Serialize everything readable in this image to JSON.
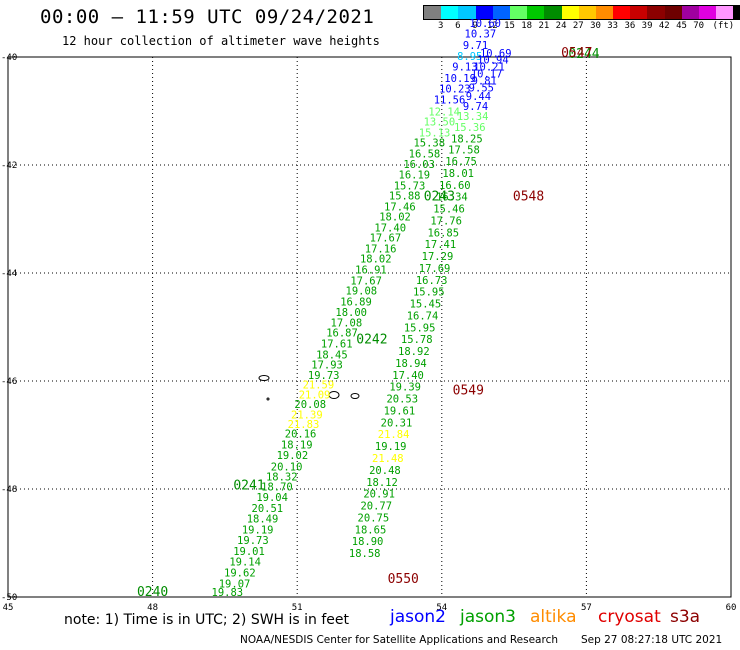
{
  "header": {
    "title": "00:00 – 11:59 UTC 09/24/2021",
    "subtitle": "12 hour collection of altimeter wave heights"
  },
  "colorbar": {
    "unit": "(ft)",
    "colors": [
      "#808080",
      "#00ffff",
      "#00c8ff",
      "#0000ff",
      "#0064ff",
      "#64ff64",
      "#00c800",
      "#008c00",
      "#ffff00",
      "#ffc800",
      "#ff8c00",
      "#ff0000",
      "#c80000",
      "#8c0000",
      "#6e0000",
      "#a000a0",
      "#e000e0",
      "#ff96ff",
      "#000000"
    ],
    "labels": [
      "3",
      "6",
      "9",
      "12",
      "15",
      "18",
      "21",
      "24",
      "27",
      "30",
      "33",
      "36",
      "39",
      "42",
      "45",
      "70"
    ]
  },
  "map": {
    "lon_ticks": [
      "45",
      "48",
      "51",
      "54",
      "57",
      "60"
    ],
    "lat_ticks": [
      "-40",
      "-42",
      "-44",
      "-46",
      "-48",
      "-50"
    ],
    "tracks": [
      {
        "name": "pass-0240-0241-0242-0243",
        "points": [
          {
            "lon": 49.55,
            "lat": -49.98,
            "v": "19.83",
            "c": "#00a000"
          },
          {
            "lon": 49.7,
            "lat": -49.82,
            "v": "19.07",
            "c": "#00a000"
          },
          {
            "lon": 49.81,
            "lat": -49.62,
            "v": "19.62",
            "c": "#00a000"
          },
          {
            "lon": 49.92,
            "lat": -49.42,
            "v": "19.14",
            "c": "#00a000"
          },
          {
            "lon": 50.0,
            "lat": -49.22,
            "v": "19.01",
            "c": "#00a000"
          },
          {
            "lon": 50.08,
            "lat": -49.02,
            "v": "19.73",
            "c": "#00a000"
          },
          {
            "lon": 50.18,
            "lat": -48.82,
            "v": "19.19",
            "c": "#00a000"
          },
          {
            "lon": 50.28,
            "lat": -48.62,
            "v": "18.49",
            "c": "#00a000"
          },
          {
            "lon": 50.38,
            "lat": -48.43,
            "v": "20.51",
            "c": "#00a000"
          },
          {
            "lon": 50.48,
            "lat": -48.22,
            "v": "19.04",
            "c": "#00a000"
          },
          {
            "lon": 50.58,
            "lat": -48.03,
            "v": "18.70",
            "c": "#00a000"
          },
          {
            "lon": 50.68,
            "lat": -47.84,
            "v": "18.32",
            "c": "#00a000"
          },
          {
            "lon": 50.78,
            "lat": -47.66,
            "v": "20.10",
            "c": "#00a000"
          },
          {
            "lon": 50.9,
            "lat": -47.44,
            "v": "19.02",
            "c": "#00a000"
          },
          {
            "lon": 50.99,
            "lat": -47.25,
            "v": "18.19",
            "c": "#00a000"
          },
          {
            "lon": 51.07,
            "lat": -47.05,
            "v": "20.16",
            "c": "#00a000"
          },
          {
            "lon": 51.13,
            "lat": -46.87,
            "v": "21.83",
            "c": "#ffff00"
          },
          {
            "lon": 51.2,
            "lat": -46.69,
            "v": "21.39",
            "c": "#ffff00"
          },
          {
            "lon": 51.27,
            "lat": -46.5,
            "v": "20.08",
            "c": "#00a000"
          },
          {
            "lon": 51.36,
            "lat": -46.32,
            "v": "21.09",
            "c": "#ffff00"
          },
          {
            "lon": 51.44,
            "lat": -46.14,
            "v": "21.59",
            "c": "#ffff00"
          },
          {
            "lon": 51.55,
            "lat": -45.96,
            "v": "19.73",
            "c": "#00a000"
          },
          {
            "lon": 51.62,
            "lat": -45.77,
            "v": "17.93",
            "c": "#00a000"
          },
          {
            "lon": 51.72,
            "lat": -45.58,
            "v": "18.45",
            "c": "#00a000"
          },
          {
            "lon": 51.82,
            "lat": -45.38,
            "v": "17.61",
            "c": "#00a000"
          },
          {
            "lon": 51.93,
            "lat": -45.18,
            "v": "16.87",
            "c": "#00a000"
          },
          {
            "lon": 52.02,
            "lat": -44.99,
            "v": "17.08",
            "c": "#00a000"
          },
          {
            "lon": 52.12,
            "lat": -44.8,
            "v": "18.00",
            "c": "#00a000"
          },
          {
            "lon": 52.22,
            "lat": -44.6,
            "v": "16.89",
            "c": "#00a000"
          },
          {
            "lon": 52.33,
            "lat": -44.4,
            "v": "19.08",
            "c": "#00a000"
          },
          {
            "lon": 52.43,
            "lat": -44.21,
            "v": "17.67",
            "c": "#00a000"
          },
          {
            "lon": 52.53,
            "lat": -44.01,
            "v": "16.91",
            "c": "#00a000"
          },
          {
            "lon": 52.63,
            "lat": -43.81,
            "v": "18.02",
            "c": "#00a000"
          },
          {
            "lon": 52.73,
            "lat": -43.62,
            "v": "17.16",
            "c": "#00a000"
          },
          {
            "lon": 52.83,
            "lat": -43.42,
            "v": "17.67",
            "c": "#00a000"
          },
          {
            "lon": 52.93,
            "lat": -43.23,
            "v": "17.40",
            "c": "#00a000"
          },
          {
            "lon": 53.03,
            "lat": -43.03,
            "v": "18.02",
            "c": "#00a000"
          },
          {
            "lon": 53.13,
            "lat": -42.84,
            "v": "17.46",
            "c": "#00a000"
          },
          {
            "lon": 53.23,
            "lat": -42.64,
            "v": "15.88",
            "c": "#00a000"
          },
          {
            "lon": 53.33,
            "lat": -42.45,
            "v": "15.73",
            "c": "#00a000"
          },
          {
            "lon": 53.43,
            "lat": -42.25,
            "v": "16.19",
            "c": "#00a000"
          },
          {
            "lon": 53.53,
            "lat": -42.06,
            "v": "16.03",
            "c": "#00a000"
          },
          {
            "lon": 53.64,
            "lat": -41.86,
            "v": "16.58",
            "c": "#00a000"
          },
          {
            "lon": 53.74,
            "lat": -41.66,
            "v": "15.38",
            "c": "#00a000"
          },
          {
            "lon": 53.85,
            "lat": -41.47,
            "v": "15.13",
            "c": "#64ff64"
          },
          {
            "lon": 53.95,
            "lat": -41.27,
            "v": "13.50",
            "c": "#64ff64"
          },
          {
            "lon": 54.05,
            "lat": -41.08,
            "v": "12.14",
            "c": "#64ff64"
          },
          {
            "lon": 54.16,
            "lat": -40.86,
            "v": "11.56",
            "c": "#0000ff"
          },
          {
            "lon": 54.27,
            "lat": -40.66,
            "v": "10.23",
            "c": "#0000ff"
          },
          {
            "lon": 54.38,
            "lat": -40.46,
            "v": "10.19",
            "c": "#0000ff"
          },
          {
            "lon": 54.48,
            "lat": -40.25,
            "v": "9.13",
            "c": "#0000ff"
          },
          {
            "lon": 54.58,
            "lat": -40.06,
            "v": "8.95",
            "c": "#00c8ff"
          },
          {
            "lon": 54.7,
            "lat": -39.85,
            "v": "9.71",
            "c": "#0000ff"
          },
          {
            "lon": 54.8,
            "lat": -39.64,
            "v": "10.37",
            "c": "#0000ff"
          },
          {
            "lon": 54.9,
            "lat": -39.44,
            "v": "10.60",
            "c": "#0000ff"
          }
        ]
      },
      {
        "name": "pass-0548-0549-0550",
        "points": [
          {
            "lon": 55.12,
            "lat": -40.0,
            "v": "10.69",
            "c": "#0000ff"
          },
          {
            "lon": 55.06,
            "lat": -40.12,
            "v": "10.94",
            "c": "#0000ff"
          },
          {
            "lon": 54.98,
            "lat": -40.25,
            "v": "10.21",
            "c": "#0000ff"
          },
          {
            "lon": 54.93,
            "lat": -40.38,
            "v": "10.17",
            "c": "#0000ff"
          },
          {
            "lon": 54.88,
            "lat": -40.51,
            "v": "9.81",
            "c": "#0000ff"
          },
          {
            "lon": 54.82,
            "lat": -40.64,
            "v": "9.55",
            "c": "#0000ff"
          },
          {
            "lon": 54.76,
            "lat": -40.8,
            "v": "9.44",
            "c": "#0000ff"
          },
          {
            "lon": 54.7,
            "lat": -40.98,
            "v": "9.74",
            "c": "#0000ff"
          },
          {
            "lon": 54.64,
            "lat": -41.17,
            "v": "13.34",
            "c": "#64ff64"
          },
          {
            "lon": 54.58,
            "lat": -41.37,
            "v": "15.36",
            "c": "#64ff64"
          },
          {
            "lon": 54.52,
            "lat": -41.58,
            "v": "18.25",
            "c": "#00a000"
          },
          {
            "lon": 54.46,
            "lat": -41.79,
            "v": "17.58",
            "c": "#00a000"
          },
          {
            "lon": 54.4,
            "lat": -42.0,
            "v": "16.75",
            "c": "#00a000"
          },
          {
            "lon": 54.34,
            "lat": -42.22,
            "v": "18.01",
            "c": "#00a000"
          },
          {
            "lon": 54.27,
            "lat": -42.44,
            "v": "16.60",
            "c": "#00a000"
          },
          {
            "lon": 54.21,
            "lat": -42.66,
            "v": "16.34",
            "c": "#00a000"
          },
          {
            "lon": 54.15,
            "lat": -42.88,
            "v": "15.46",
            "c": "#00a000"
          },
          {
            "lon": 54.09,
            "lat": -43.1,
            "v": "17.76",
            "c": "#00a000"
          },
          {
            "lon": 54.03,
            "lat": -43.32,
            "v": "16.85",
            "c": "#00a000"
          },
          {
            "lon": 53.97,
            "lat": -43.54,
            "v": "17.41",
            "c": "#00a000"
          },
          {
            "lon": 53.91,
            "lat": -43.76,
            "v": "17.29",
            "c": "#00a000"
          },
          {
            "lon": 53.85,
            "lat": -43.98,
            "v": "17.69",
            "c": "#00a000"
          },
          {
            "lon": 53.79,
            "lat": -44.2,
            "v": "16.73",
            "c": "#00a000"
          },
          {
            "lon": 53.73,
            "lat": -44.42,
            "v": "15.95",
            "c": "#00a000"
          },
          {
            "lon": 53.66,
            "lat": -44.64,
            "v": "15.45",
            "c": "#00a000"
          },
          {
            "lon": 53.6,
            "lat": -44.86,
            "v": "16.74",
            "c": "#00a000"
          },
          {
            "lon": 53.54,
            "lat": -45.08,
            "v": "15.95",
            "c": "#00a000"
          },
          {
            "lon": 53.48,
            "lat": -45.3,
            "v": "15.78",
            "c": "#00a000"
          },
          {
            "lon": 53.42,
            "lat": -45.52,
            "v": "18.92",
            "c": "#00a000"
          },
          {
            "lon": 53.36,
            "lat": -45.74,
            "v": "18.94",
            "c": "#00a000"
          },
          {
            "lon": 53.3,
            "lat": -45.96,
            "v": "17.40",
            "c": "#00a000"
          },
          {
            "lon": 53.24,
            "lat": -46.18,
            "v": "19.39",
            "c": "#00a000"
          },
          {
            "lon": 53.18,
            "lat": -46.4,
            "v": "20.53",
            "c": "#00a000"
          },
          {
            "lon": 53.12,
            "lat": -46.62,
            "v": "19.61",
            "c": "#00a000"
          },
          {
            "lon": 53.06,
            "lat": -46.84,
            "v": "20.31",
            "c": "#00a000"
          },
          {
            "lon": 53.0,
            "lat": -47.06,
            "v": "21.84",
            "c": "#ffff00"
          },
          {
            "lon": 52.94,
            "lat": -47.28,
            "v": "19.19",
            "c": "#00a000"
          },
          {
            "lon": 52.88,
            "lat": -47.5,
            "v": "21.48",
            "c": "#ffff00"
          },
          {
            "lon": 52.82,
            "lat": -47.72,
            "v": "20.48",
            "c": "#00a000"
          },
          {
            "lon": 52.76,
            "lat": -47.94,
            "v": "18.12",
            "c": "#00a000"
          },
          {
            "lon": 52.7,
            "lat": -48.16,
            "v": "20.91",
            "c": "#00a000"
          },
          {
            "lon": 52.64,
            "lat": -48.38,
            "v": "20.77",
            "c": "#00a000"
          },
          {
            "lon": 52.58,
            "lat": -48.6,
            "v": "20.75",
            "c": "#00a000"
          },
          {
            "lon": 52.52,
            "lat": -48.82,
            "v": "18.65",
            "c": "#00a000"
          },
          {
            "lon": 52.46,
            "lat": -49.04,
            "v": "18.90",
            "c": "#00a000"
          },
          {
            "lon": 52.4,
            "lat": -49.26,
            "v": "18.58",
            "c": "#00a000"
          }
        ]
      }
    ],
    "time_labels": [
      {
        "text": "0240",
        "lon": 48.0,
        "lat": -49.98,
        "c": "#008c00"
      },
      {
        "text": "0241",
        "lon": 50.0,
        "lat": -48.01,
        "c": "#008c00"
      },
      {
        "text": "0242",
        "lon": 52.55,
        "lat": -45.31,
        "c": "#008c00"
      },
      {
        "text": "0243",
        "lon": 53.95,
        "lat": -42.66,
        "c": "#008c00"
      },
      {
        "text": "0244",
        "lon": 56.95,
        "lat": -40.02,
        "c": "#008c00"
      },
      {
        "text": "0547",
        "lon": 56.8,
        "lat": -40.0,
        "c": "#8c0000"
      },
      {
        "text": "0548",
        "lon": 55.8,
        "lat": -42.66,
        "c": "#8c0000"
      },
      {
        "text": "0549",
        "lon": 54.55,
        "lat": -46.25,
        "c": "#8c0000"
      },
      {
        "text": "0550",
        "lon": 53.2,
        "lat": -49.74,
        "c": "#8c0000"
      }
    ]
  },
  "note": "note:  1) Time is in UTC; 2) SWH is in feet",
  "legend": [
    {
      "label": "jason2",
      "color": "#0000ff"
    },
    {
      "label": "jason3",
      "color": "#00a000"
    },
    {
      "label": "altika",
      "color": "#ff8c00"
    },
    {
      "label": "cryosat",
      "color": "#e00000"
    },
    {
      "label": "s3a",
      "color": "#8c0000"
    }
  ],
  "footer": {
    "credit": "NOAA/NESDIS Center for Satellite Applications and Research",
    "timestamp": "Sep 27 08:27:18 UTC 2021"
  }
}
